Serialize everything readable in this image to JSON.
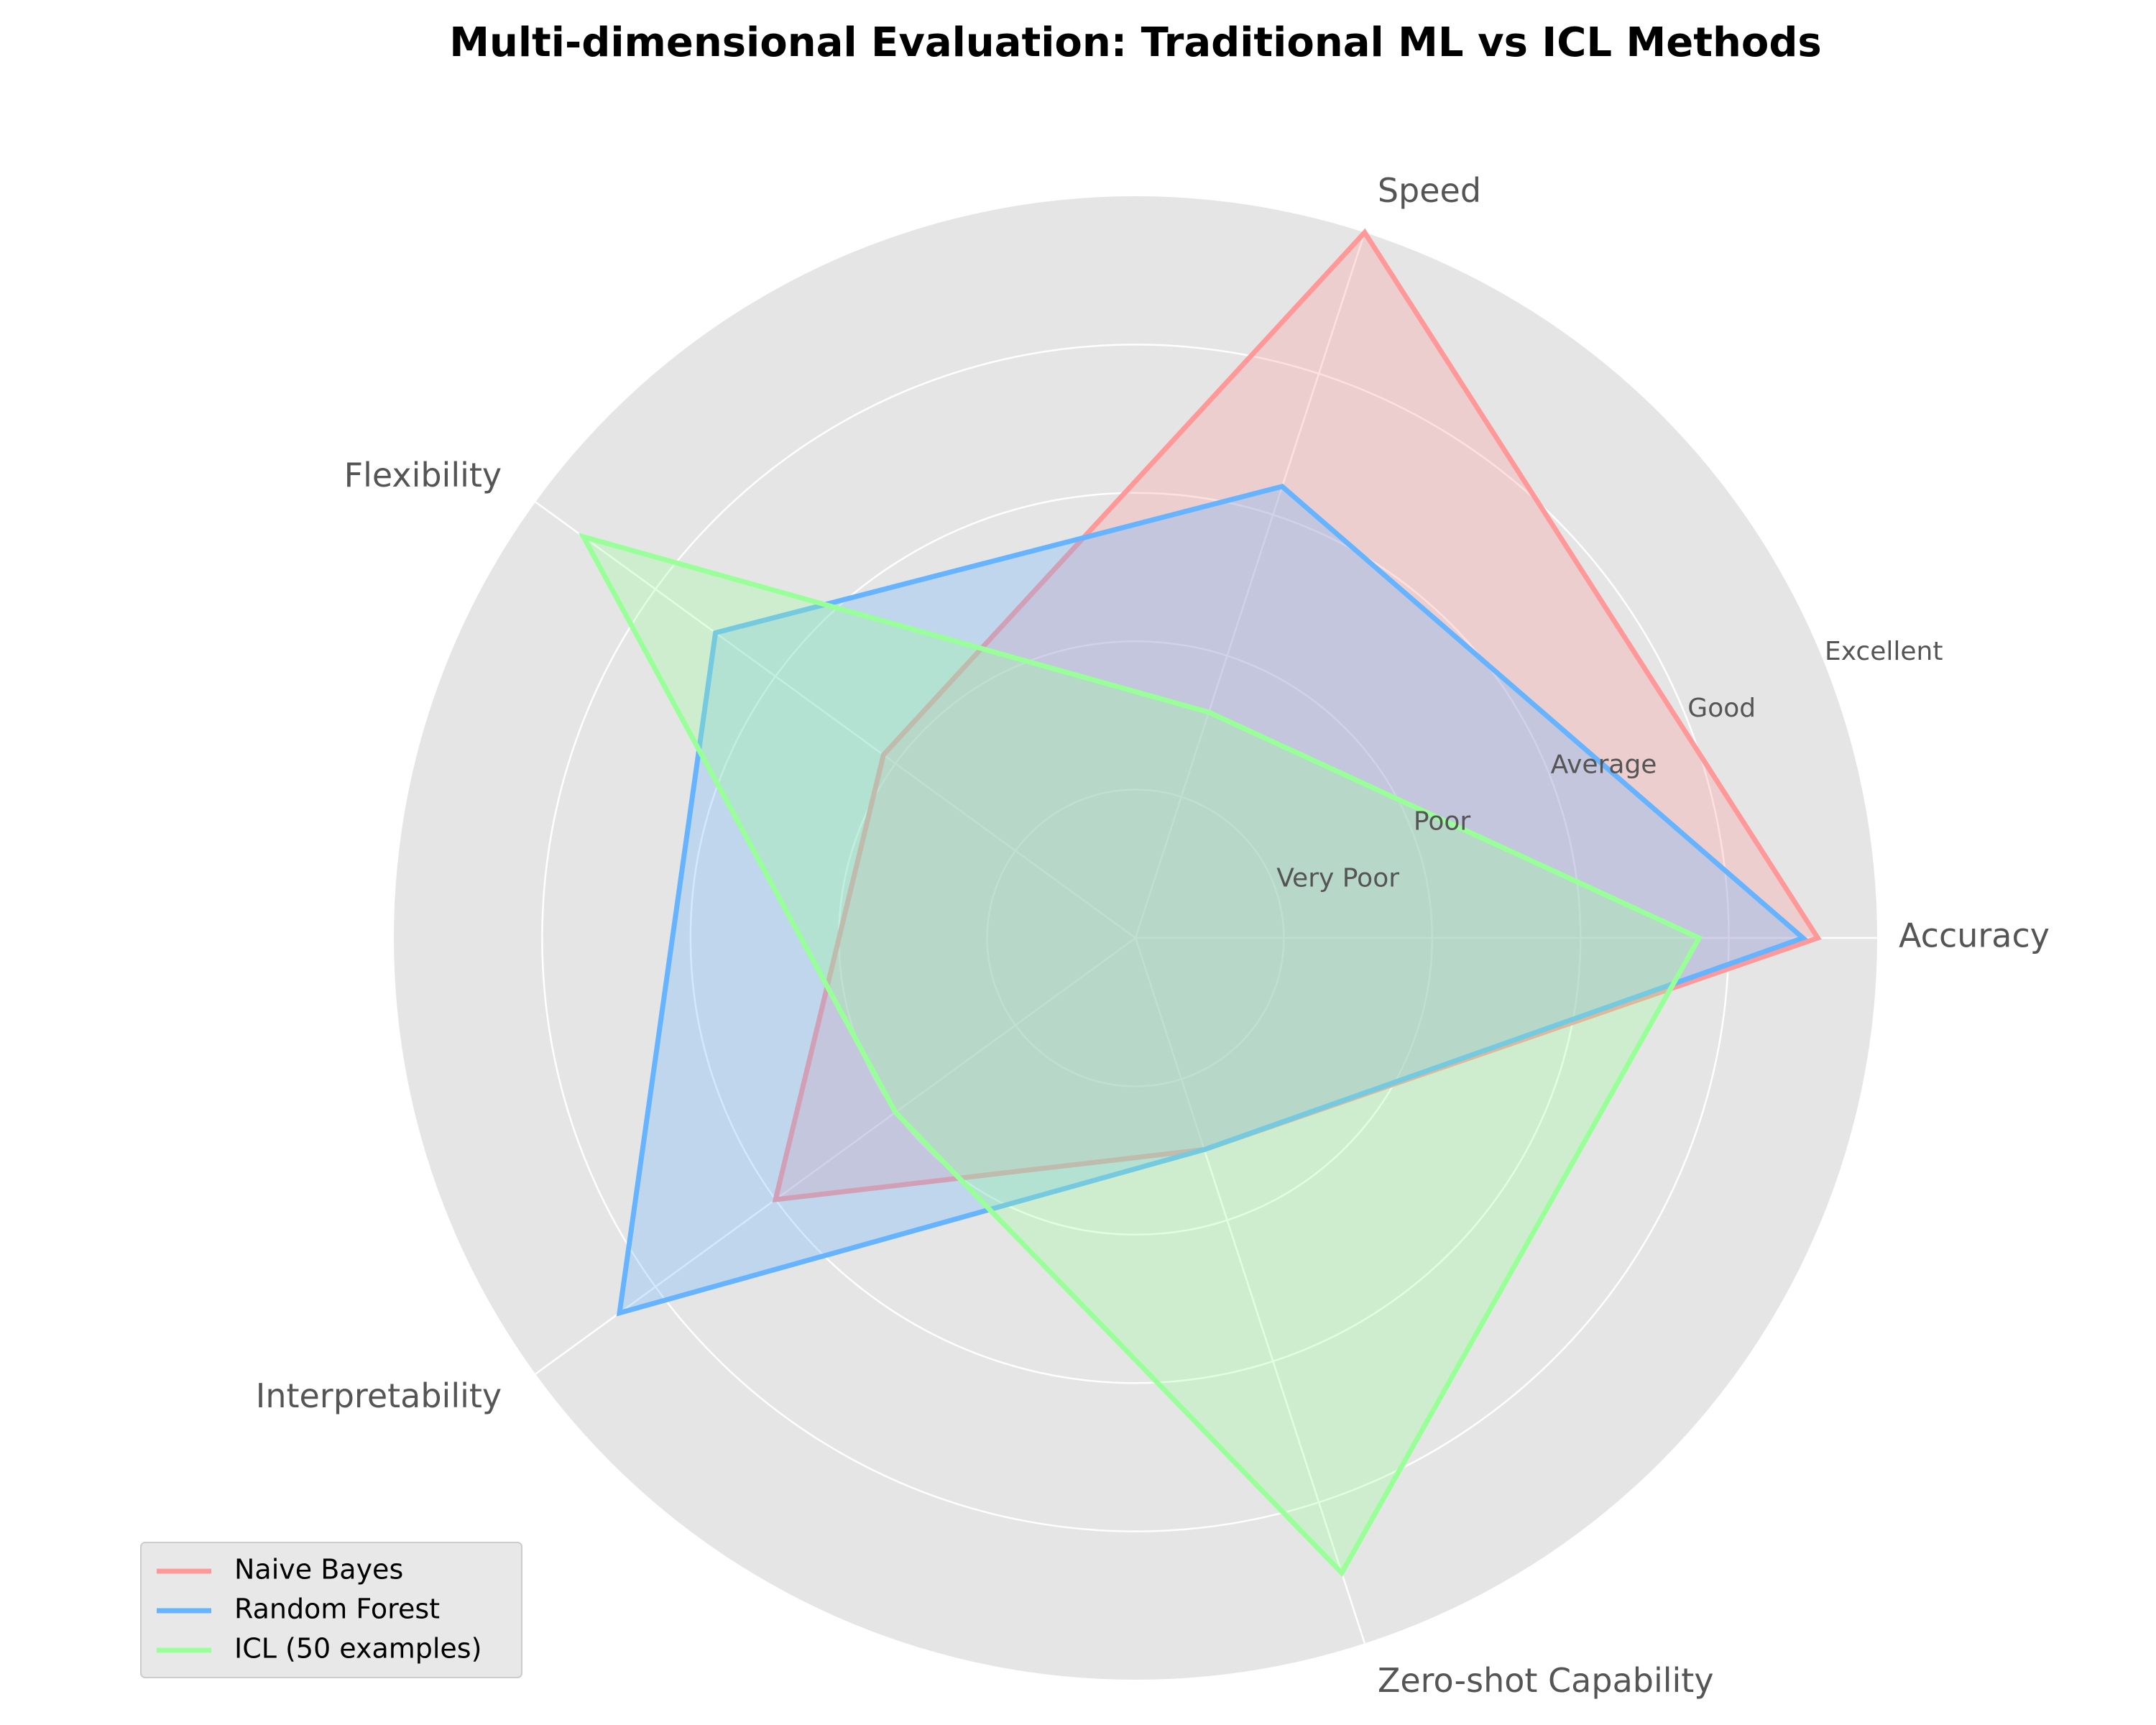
{
  "chart_data": {
    "type": "radar",
    "title": "Multi-dimensional Evaluation: Traditional ML vs ICL Methods",
    "categories": [
      "Accuracy",
      "Speed",
      "Flexibility",
      "Interpretability",
      "Zero-shot Capability"
    ],
    "rlim": [
      0,
      5
    ],
    "tick_values": [
      1,
      2,
      3,
      4,
      5
    ],
    "tick_labels": [
      "Very Poor",
      "Poor",
      "Average",
      "Good",
      "Excellent"
    ],
    "grid": true,
    "legend_position": "bottom-left",
    "series": [
      {
        "name": "Naive Bayes",
        "color": "#ff9999",
        "values": [
          4.6,
          5.0,
          2.1,
          3.0,
          1.5
        ]
      },
      {
        "name": "Random Forest",
        "color": "#66b3ff",
        "values": [
          4.5,
          3.2,
          3.5,
          4.3,
          1.5
        ]
      },
      {
        "name": "ICL (50 examples)",
        "color": "#99ff99",
        "values": [
          3.8,
          1.6,
          4.6,
          2.0,
          4.5
        ]
      }
    ]
  },
  "colors": {
    "polar_background": "#e5e5e5",
    "grid": "#ffffff"
  }
}
